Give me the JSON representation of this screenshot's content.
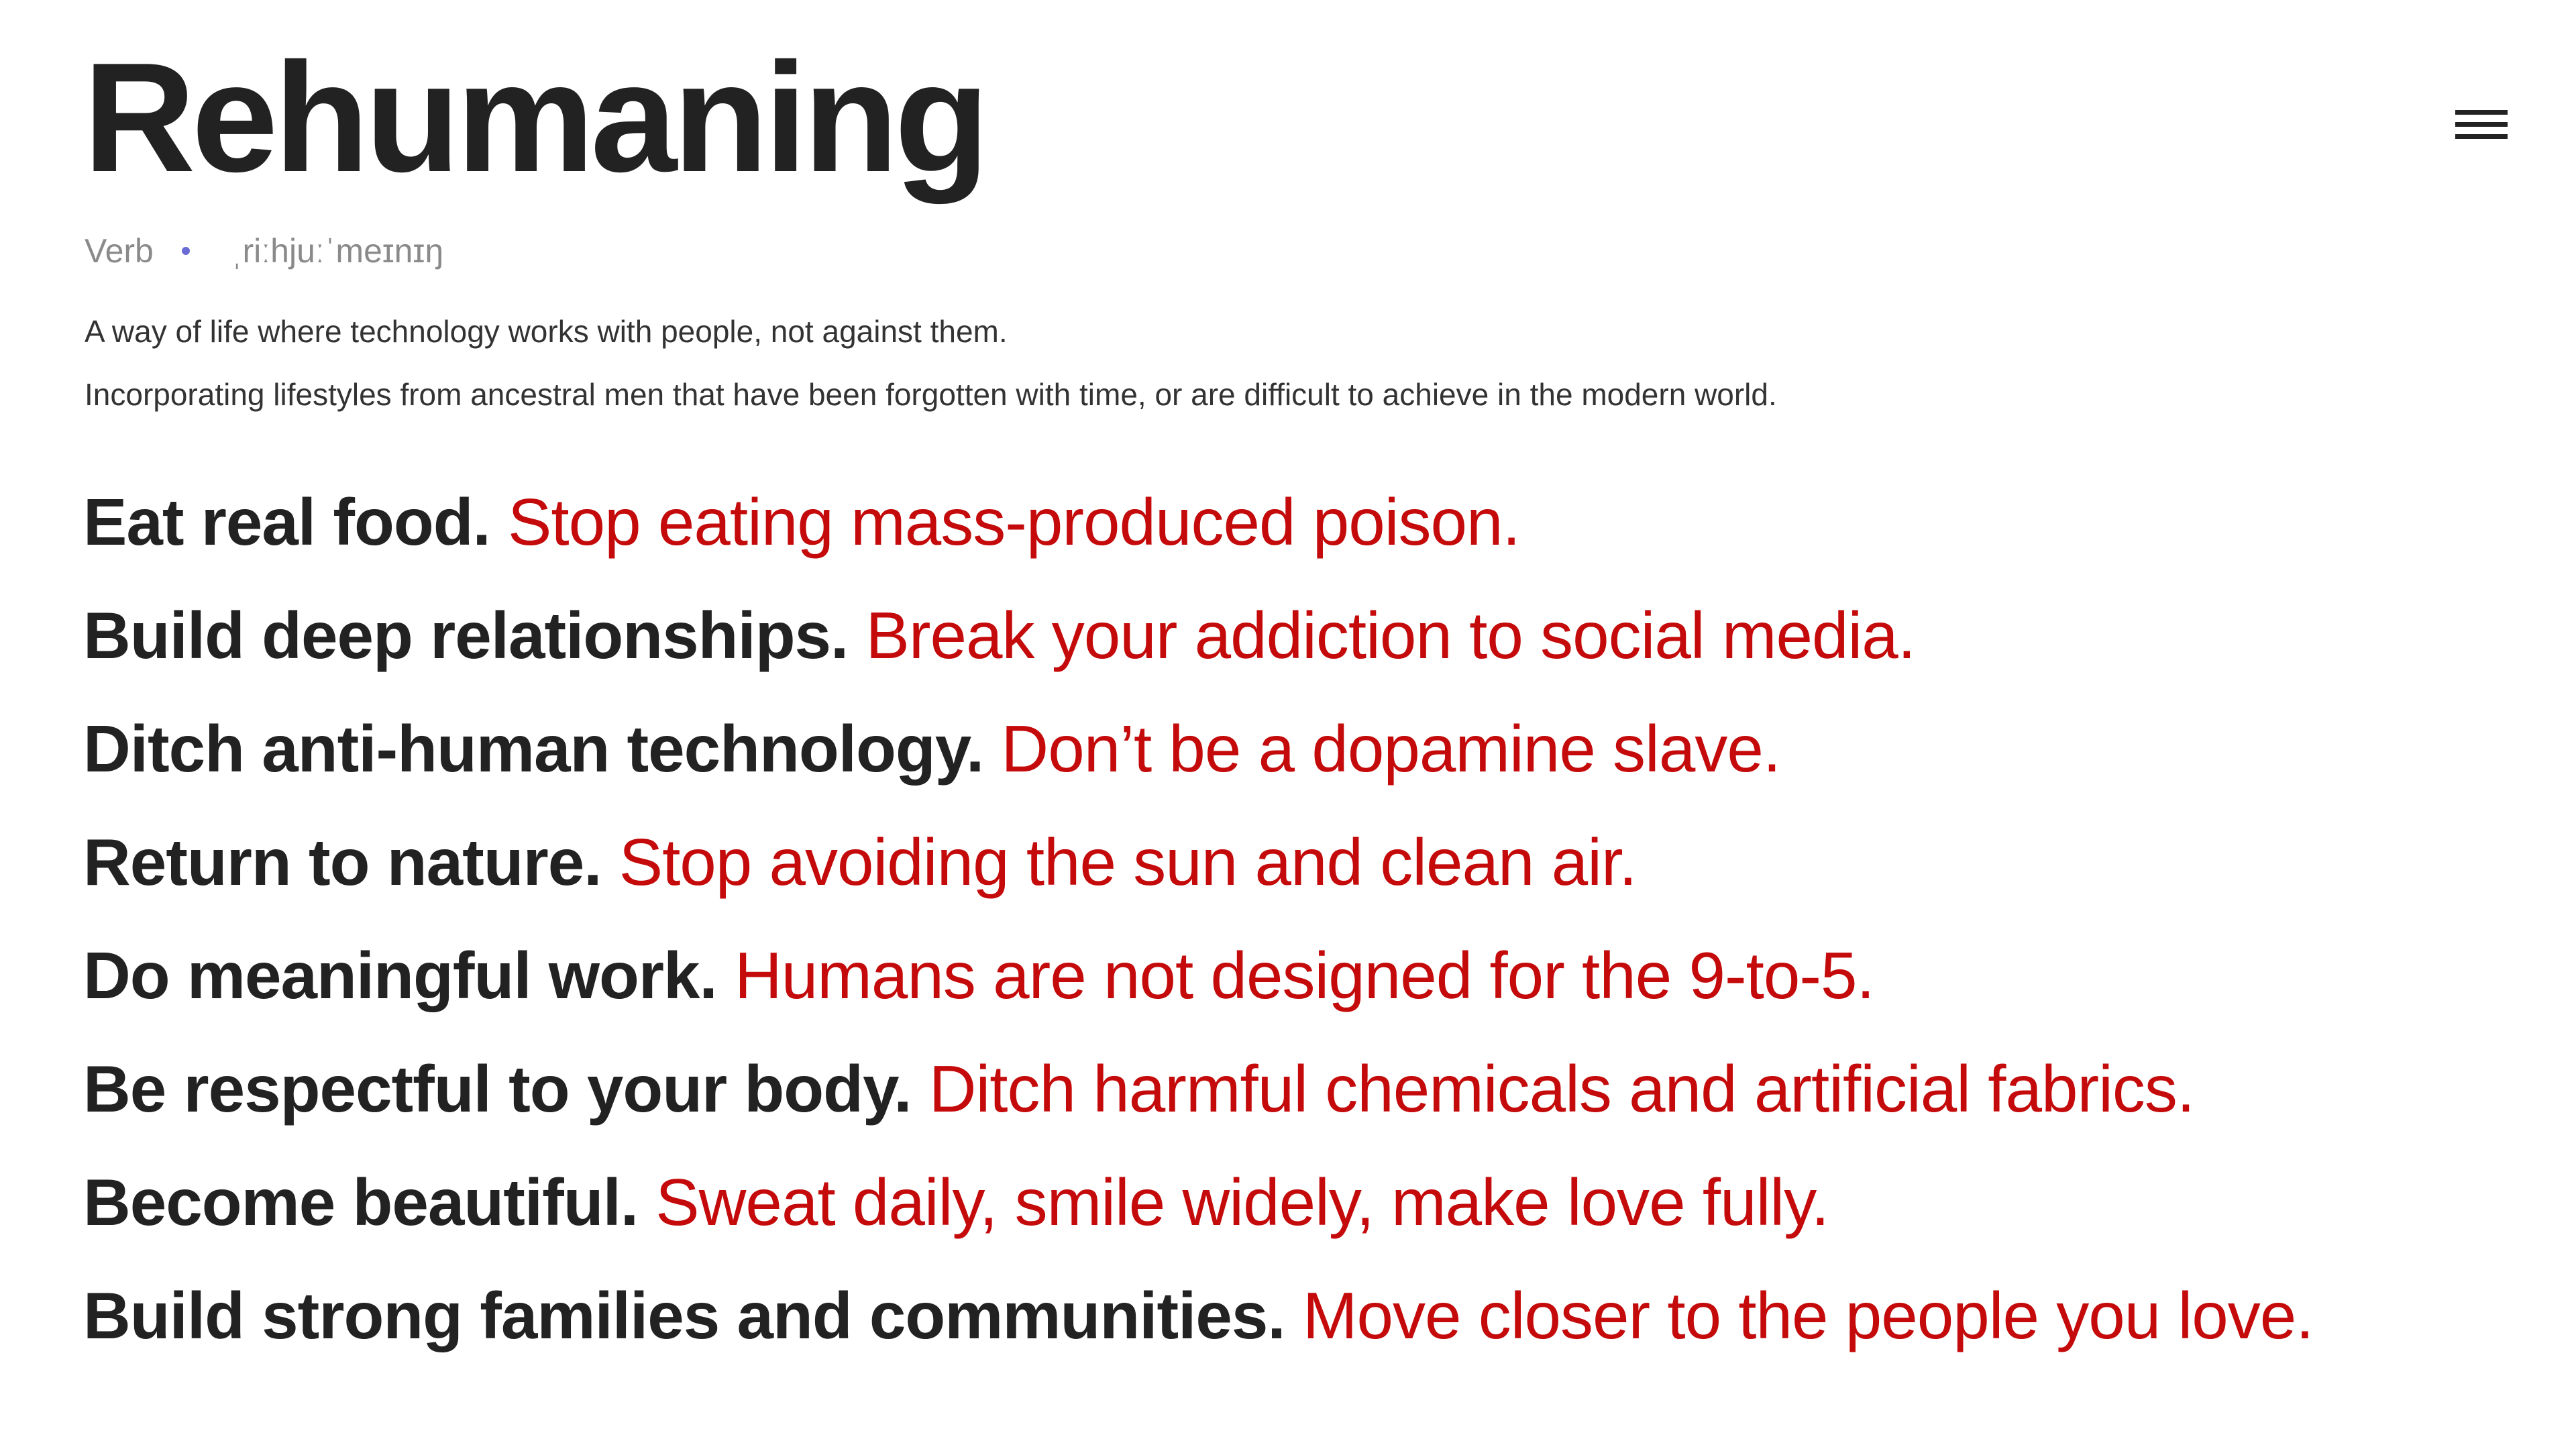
{
  "header": {
    "title": "Rehumaning",
    "menu_icon": "hamburger-menu-icon"
  },
  "meta": {
    "part_of_speech": "Verb",
    "pronunciation": "ˌriːhjuːˈmeɪnɪŋ"
  },
  "definitions": [
    "A way of life where technology works with people, not against them.",
    "Incorporating lifestyles from ancestral men that have been forgotten with time, or are difficult to achieve in the modern world."
  ],
  "principles": [
    {
      "lead": "Eat real food.",
      "follow": "Stop eating mass-produced poison."
    },
    {
      "lead": "Build deep relationships.",
      "follow": "Break your addiction to social media."
    },
    {
      "lead": "Ditch anti-human technology.",
      "follow": "Don’t be a dopamine slave."
    },
    {
      "lead": "Return to nature.",
      "follow": "Stop avoiding the sun and clean air."
    },
    {
      "lead": "Do meaningful work.",
      "follow": "Humans are not designed for the 9-to-5."
    },
    {
      "lead": "Be respectful to your body.",
      "follow": "Ditch harmful chemicals and artificial fabrics."
    },
    {
      "lead": "Become beautiful.",
      "follow": "Sweat daily, smile widely, make love fully."
    },
    {
      "lead": "Build strong families and communities.",
      "follow": "Move closer to the people you love."
    }
  ],
  "colors": {
    "text": "#222222",
    "accent_red": "#c40a0a",
    "muted": "#8a8a8a",
    "dot": "#6b6bd6"
  }
}
